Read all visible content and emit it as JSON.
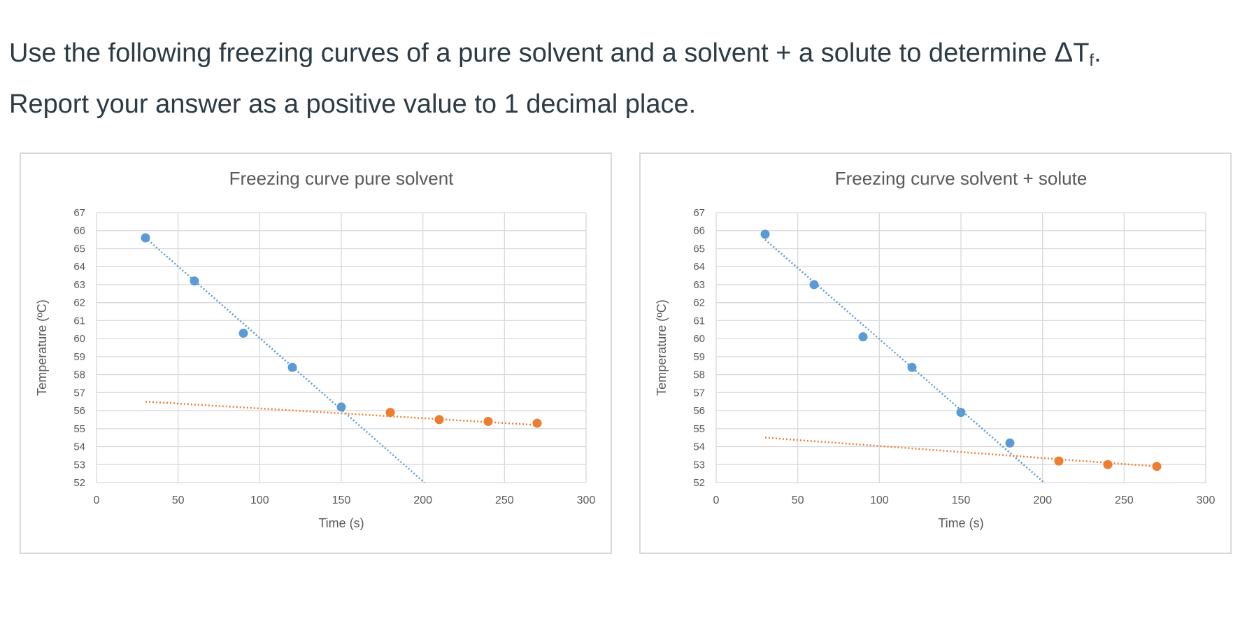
{
  "question": {
    "line1_prefix": "Use the following freezing curves of a pure solvent and a solvent + a solute to determine ",
    "delta_symbol": "Δ",
    "t_symbol": "T",
    "subscript": "f",
    "line1_suffix": ".",
    "line2": "Report your answer as a positive value to 1 decimal place."
  },
  "chart_data": [
    {
      "type": "scatter",
      "title": "Freezing curve pure solvent",
      "xlabel": "Time (s)",
      "ylabel": "Temperature (ºC)",
      "xlim": [
        0,
        300
      ],
      "ylim": [
        52,
        67
      ],
      "xticks": [
        0,
        50,
        100,
        150,
        200,
        250,
        300
      ],
      "yticks": [
        52,
        53,
        54,
        55,
        56,
        57,
        58,
        59,
        60,
        61,
        62,
        63,
        64,
        65,
        66,
        67
      ],
      "grid": true,
      "series": [
        {
          "color": "#5b9bd5",
          "points": [
            [
              30,
              65.6
            ],
            [
              60,
              63.2
            ],
            [
              90,
              60.3
            ],
            [
              120,
              58.4
            ],
            [
              150,
              56.2
            ]
          ],
          "trendline": {
            "x": [
              30,
              201
            ],
            "y": [
              65.6,
              52.0
            ],
            "style": "dotted"
          }
        },
        {
          "color": "#ed7d31",
          "points": [
            [
              180,
              55.9
            ],
            [
              210,
              55.5
            ],
            [
              240,
              55.4
            ],
            [
              270,
              55.3
            ]
          ],
          "trendline": {
            "x": [
              30,
              270
            ],
            "y": [
              56.5,
              55.2
            ],
            "style": "dotted"
          }
        }
      ]
    },
    {
      "type": "scatter",
      "title": "Freezing curve solvent + solute",
      "xlabel": "Time (s)",
      "ylabel": "Temperature (ºC)",
      "xlim": [
        0,
        300
      ],
      "ylim": [
        52,
        67
      ],
      "xticks": [
        0,
        50,
        100,
        150,
        200,
        250,
        300
      ],
      "yticks": [
        52,
        53,
        54,
        55,
        56,
        57,
        58,
        59,
        60,
        61,
        62,
        63,
        64,
        65,
        66,
        67
      ],
      "grid": true,
      "series": [
        {
          "color": "#5b9bd5",
          "points": [
            [
              30,
              65.8
            ],
            [
              60,
              63.0
            ],
            [
              90,
              60.1
            ],
            [
              120,
              58.4
            ],
            [
              150,
              55.9
            ],
            [
              180,
              54.2
            ]
          ],
          "trendline": {
            "x": [
              30,
              201
            ],
            "y": [
              65.5,
              52.0
            ],
            "style": "dotted"
          }
        },
        {
          "color": "#ed7d31",
          "points": [
            [
              210,
              53.2
            ],
            [
              240,
              53.0
            ],
            [
              270,
              52.9
            ]
          ],
          "trendline": {
            "x": [
              30,
              270
            ],
            "y": [
              54.5,
              52.9
            ],
            "style": "dotted"
          }
        }
      ]
    }
  ]
}
